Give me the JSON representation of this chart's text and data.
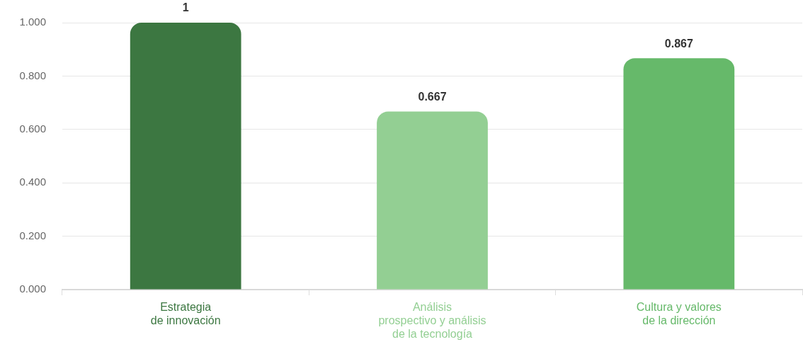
{
  "chart_data": {
    "type": "bar",
    "categories": [
      "Estrategia\nde innovación",
      "Análisis\nprospectivo y análisis\nde la tecnología",
      "Cultura y valores\nde la dirección"
    ],
    "values": [
      1,
      0.667,
      0.867
    ],
    "colors": [
      "#3c7741",
      "#93cf93",
      "#66b96a"
    ],
    "ylim": [
      0,
      1
    ],
    "yticks": [
      {
        "value": 0,
        "label": "0.000"
      },
      {
        "value": 0.2,
        "label": "0.200"
      },
      {
        "value": 0.4,
        "label": "0.400"
      },
      {
        "value": 0.6,
        "label": "0.600"
      },
      {
        "value": 0.8,
        "label": "0.800"
      },
      {
        "value": 1,
        "label": "1.000"
      }
    ],
    "grid": "y",
    "data_labels": true
  }
}
